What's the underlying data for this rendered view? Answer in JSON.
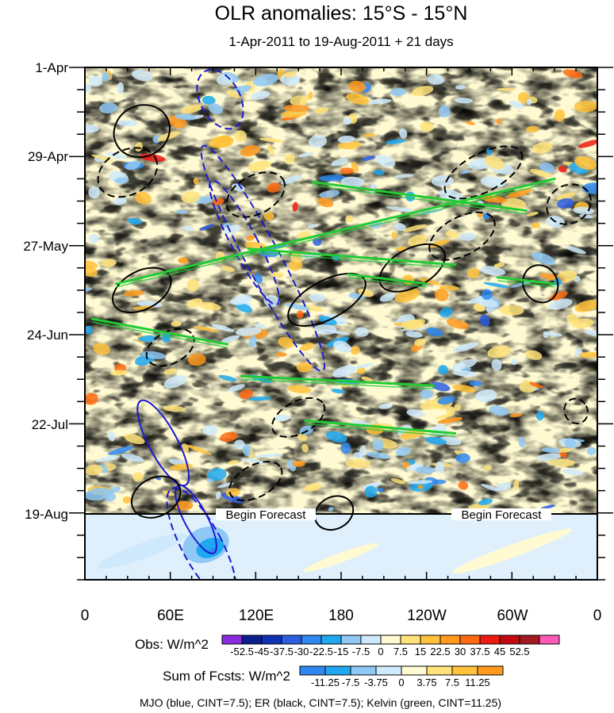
{
  "chart_data": {
    "type": "heatmap",
    "title": "OLR anomalies: 15°S - 15°N",
    "subtitle": "1-Apr-2011 to 19-Aug-2011 + 21 days",
    "x_ticks": [
      "0",
      "60E",
      "120E",
      "180",
      "120W",
      "60W",
      "0"
    ],
    "x_range_deg": [
      0,
      360
    ],
    "y_ticks": [
      "1-Apr",
      "29-Apr",
      "27-May",
      "24-Jun",
      "22-Jul",
      "19-Aug"
    ],
    "y_range_days": [
      0,
      161
    ],
    "forecast_start_day": 140,
    "forecast_label": "Begin Forecast",
    "obs_colorbar": {
      "label": "Obs: W/m^2",
      "levels": [
        "-52.5",
        "-45",
        "-37.5",
        "-30",
        "-22.5",
        "-15",
        "-7.5",
        "0",
        "7.5",
        "15",
        "22.5",
        "30",
        "37.5",
        "45",
        "52.5"
      ],
      "colors": [
        "#8a2be2",
        "#0a1e8c",
        "#1030b8",
        "#2e5fe0",
        "#2f88f0",
        "#1fa8f0",
        "#8fc8f5",
        "#cfeafc",
        "#fffad2",
        "#ffe37a",
        "#ffc23a",
        "#ff9a1e",
        "#ff6a10",
        "#ee1a10",
        "#c00a10",
        "#a01a20",
        "#ff5ab8"
      ]
    },
    "fcst_colorbar": {
      "label": "Sum of Fcsts: W/m^2",
      "levels": [
        "-11.25",
        "-7.5",
        "-3.75",
        "0",
        "3.75",
        "7.5",
        "11.25"
      ],
      "colors": [
        "#2f88f0",
        "#1fa8f0",
        "#8fc8f5",
        "#cfeafc",
        "#fffad2",
        "#ffe37a",
        "#ffc23a",
        "#ff9a1e"
      ]
    },
    "footer": "MJO (blue, CINT=7.5); ER (black, CINT=7.5); Kelvin (green, CINT=11.25)",
    "series": [
      {
        "name": "MJO",
        "color": "#1a1ad0",
        "contours": [
          [
            95,
            10,
            14,
            10,
            -1
          ],
          [
            125,
            60,
            12,
            40,
            -1
          ],
          [
            112,
            55,
            9,
            22,
            -1
          ],
          [
            55,
            118,
            10,
            15,
            1
          ],
          [
            78,
            142,
            8,
            12,
            1
          ],
          [
            82,
            150,
            14,
            20,
            -1
          ]
        ]
      },
      {
        "name": "ER",
        "color": "#000000",
        "contours": [
          [
            40,
            20,
            20,
            8,
            1
          ],
          [
            30,
            33,
            22,
            7,
            -1
          ],
          [
            120,
            40,
            22,
            6,
            -1
          ],
          [
            280,
            33,
            30,
            6,
            -1
          ],
          [
            230,
            63,
            25,
            6,
            1
          ],
          [
            170,
            73,
            30,
            6,
            1
          ],
          [
            265,
            53,
            25,
            6,
            -1
          ],
          [
            40,
            70,
            22,
            6,
            1
          ],
          [
            60,
            88,
            18,
            5,
            -1
          ],
          [
            120,
            130,
            20,
            5,
            -1
          ],
          [
            150,
            110,
            20,
            5,
            -1
          ],
          [
            50,
            135,
            18,
            6,
            1
          ],
          [
            320,
            68,
            12,
            6,
            1
          ],
          [
            340,
            43,
            16,
            6,
            -1
          ],
          [
            175,
            140,
            14,
            5,
            1
          ],
          [
            345,
            108,
            8,
            4,
            -1
          ]
        ]
      },
      {
        "name": "Kelvin",
        "color": "#22cc33",
        "segments": [
          [
            330,
            35,
            22,
            68
          ],
          [
            310,
            45,
            160,
            36
          ],
          [
            260,
            62,
            115,
            57
          ],
          [
            240,
            68,
            185,
            65
          ],
          [
            100,
            87,
            5,
            79
          ],
          [
            245,
            100,
            110,
            97
          ],
          [
            260,
            115,
            155,
            111
          ],
          [
            330,
            68,
            290,
            66
          ]
        ]
      }
    ]
  }
}
